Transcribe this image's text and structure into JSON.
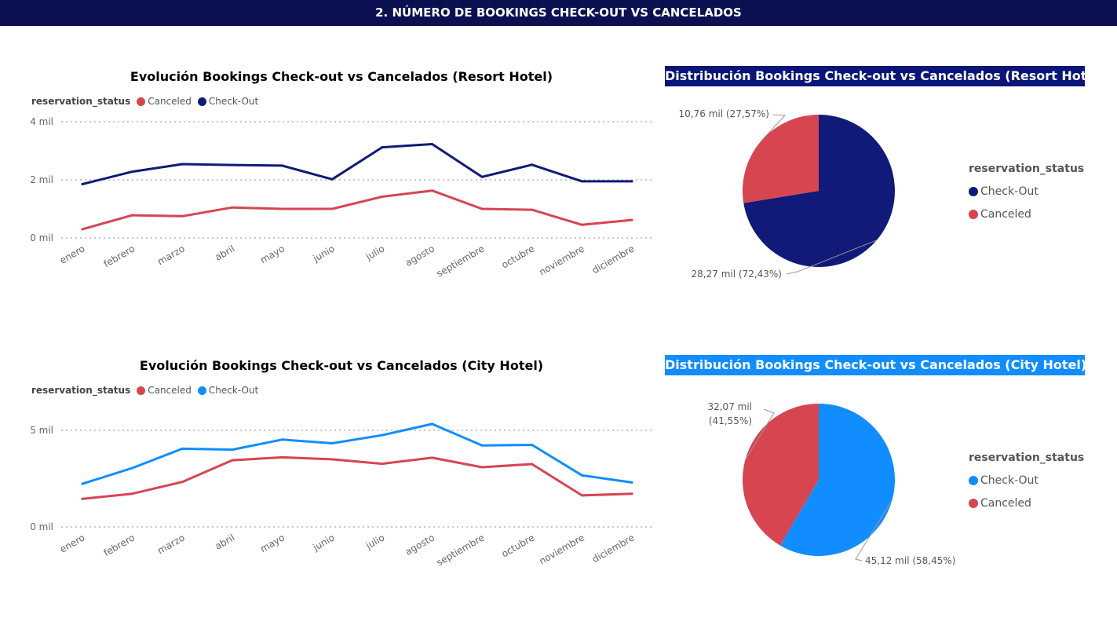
{
  "header": {
    "title": "2. NÚMERO DE BOOKINGS CHECK-OUT VS CANCELADOS"
  },
  "colors": {
    "header_bg": "#0b1150",
    "canceled": "#d64550",
    "checkout_resort": "#111a78",
    "checkout_city": "#118dff",
    "resort_title_bg": "#0b1578",
    "city_title_bg": "#118dff",
    "grid": "#c8c8c8"
  },
  "chart_data": [
    {
      "id": "resort_line",
      "type": "line",
      "title": "Evolución Bookings Check-out vs Cancelados (Resort Hotel)",
      "legend_title": "reservation_status",
      "categories": [
        "enero",
        "febrero",
        "marzo",
        "abril",
        "mayo",
        "junio",
        "julio",
        "agosto",
        "septiembre",
        "octubre",
        "noviembre",
        "diciembre"
      ],
      "series": [
        {
          "name": "Canceled",
          "color": "#d64550",
          "values": [
            0.3,
            0.78,
            0.75,
            1.05,
            1.0,
            1.0,
            1.42,
            1.63,
            1.0,
            0.97,
            0.45,
            0.62
          ]
        },
        {
          "name": "Check-Out",
          "color": "#111a78",
          "values": [
            1.85,
            2.28,
            2.54,
            2.51,
            2.49,
            2.02,
            3.12,
            3.23,
            2.1,
            2.52,
            1.95,
            1.95
          ]
        }
      ],
      "yticks": [
        {
          "value": 0,
          "label": "0 mil"
        },
        {
          "value": 2,
          "label": "2 mil"
        },
        {
          "value": 4,
          "label": "4 mil"
        }
      ],
      "ylim": [
        0,
        4
      ],
      "unit": "mil",
      "grid": true,
      "legend": "top-left"
    },
    {
      "id": "city_line",
      "type": "line",
      "title": "Evolución Bookings Check-out vs Cancelados (City Hotel)",
      "legend_title": "reservation_status",
      "categories": [
        "enero",
        "febrero",
        "marzo",
        "abril",
        "mayo",
        "junio",
        "julio",
        "agosto",
        "septiembre",
        "octubre",
        "noviembre",
        "diciembre"
      ],
      "series": [
        {
          "name": "Canceled",
          "color": "#d64550",
          "values": [
            1.45,
            1.72,
            2.33,
            3.45,
            3.6,
            3.5,
            3.27,
            3.58,
            3.09,
            3.25,
            1.63,
            1.72
          ]
        },
        {
          "name": "Check-Out",
          "color": "#118dff",
          "values": [
            2.23,
            3.05,
            4.05,
            4.0,
            4.52,
            4.33,
            4.75,
            5.33,
            4.22,
            4.25,
            2.67,
            2.3
          ]
        }
      ],
      "yticks": [
        {
          "value": 0,
          "label": "0 mil"
        },
        {
          "value": 5,
          "label": "5 mil"
        }
      ],
      "ylim": [
        0,
        5
      ],
      "unit": "mil",
      "grid": true,
      "legend": "top-left"
    },
    {
      "id": "resort_pie",
      "type": "pie",
      "title": "Distribución Bookings Check-out vs Cancelados (Resort Hotel)",
      "legend_title": "reservation_status",
      "slices": [
        {
          "name": "Check-Out",
          "value": 28.27,
          "percent": 72.43,
          "color": "#111a78",
          "label": "28,27 mil (72,43%)"
        },
        {
          "name": "Canceled",
          "value": 10.76,
          "percent": 27.57,
          "color": "#d64550",
          "label": "10,76 mil (27,57%)"
        }
      ],
      "legend": "right"
    },
    {
      "id": "city_pie",
      "type": "pie",
      "title": "Distribución Bookings Check-out vs Cancelados (City Hotel)",
      "legend_title": "reservation_status",
      "slices": [
        {
          "name": "Check-Out",
          "value": 45.12,
          "percent": 58.45,
          "color": "#118dff",
          "label": "45,12 mil (58,45%)"
        },
        {
          "name": "Canceled",
          "value": 32.07,
          "percent": 41.55,
          "color": "#d64550",
          "label_lines": [
            "32,07 mil",
            "(41,55%)"
          ]
        }
      ],
      "legend": "right"
    }
  ]
}
